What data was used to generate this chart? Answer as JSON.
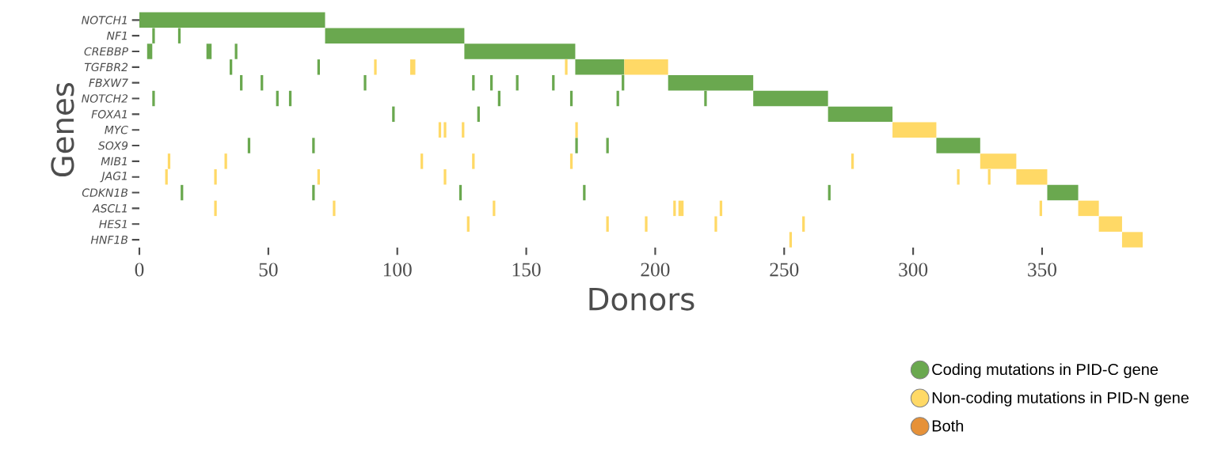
{
  "chart_data": {
    "type": "bar",
    "orientation": "horizontal",
    "xlabel": "Donors",
    "ylabel": "Genes",
    "categories": [
      "NOTCH1",
      "NF1",
      "CREBBP",
      "TGFBR2",
      "FBXW7",
      "NOTCH2",
      "FOXA1",
      "MYC",
      "SOX9",
      "MIB1",
      "JAG1",
      "CDKN1B",
      "ASCL1",
      "HES1",
      "HNF1B"
    ],
    "xlim": [
      0,
      389
    ],
    "xticks": [
      0,
      50,
      100,
      150,
      200,
      250,
      300,
      350
    ],
    "legend": "bottom right",
    "series": [
      {
        "name": "Coding mutations in PID-C gene",
        "color": "#6aa84f",
        "base": [
          0,
          5,
          3,
          35,
          39,
          5,
          98,
          null,
          42,
          null,
          null,
          16,
          null,
          null,
          null
        ],
        "values": [
          72,
          1,
          2,
          1,
          1,
          1,
          1,
          null,
          1,
          null,
          null,
          1,
          null,
          null,
          null
        ]
      },
      {
        "color": "#6aa84f",
        "base": [
          null,
          15,
          26,
          69,
          47,
          53,
          131,
          null,
          67,
          null,
          null,
          67,
          null,
          null,
          null
        ],
        "values": [
          null,
          1,
          2,
          1,
          1,
          1,
          1,
          null,
          1,
          null,
          null,
          1,
          null,
          null,
          null
        ]
      },
      {
        "color": "#6aa84f",
        "base": [
          null,
          72,
          37,
          169,
          87,
          58,
          267,
          null,
          169,
          null,
          null,
          124,
          null,
          null,
          null
        ],
        "values": [
          null,
          54,
          1,
          19,
          1,
          1,
          25,
          null,
          1,
          null,
          null,
          1,
          null,
          null,
          null
        ]
      },
      {
        "color": "#6aa84f",
        "base": [
          null,
          null,
          126,
          null,
          129,
          139,
          null,
          null,
          181,
          null,
          null,
          172,
          null,
          null,
          null
        ],
        "values": [
          null,
          null,
          43,
          null,
          1,
          1,
          null,
          null,
          1,
          null,
          null,
          1,
          null,
          null,
          null
        ]
      },
      {
        "color": "#6aa84f",
        "base": [
          null,
          null,
          null,
          null,
          136,
          167,
          null,
          null,
          309,
          null,
          null,
          267,
          null,
          null,
          null
        ],
        "values": [
          null,
          null,
          null,
          null,
          1,
          1,
          null,
          null,
          17,
          null,
          null,
          1,
          null,
          null,
          null
        ]
      },
      {
        "color": "#6aa84f",
        "base": [
          null,
          null,
          null,
          null,
          146,
          185,
          null,
          null,
          null,
          null,
          null,
          352,
          null,
          null,
          null
        ],
        "values": [
          null,
          null,
          null,
          null,
          1,
          1,
          null,
          null,
          null,
          null,
          null,
          12,
          null,
          null,
          null
        ]
      },
      {
        "color": "#6aa84f",
        "base": [
          null,
          null,
          null,
          null,
          160,
          219,
          null,
          null,
          null,
          null,
          null,
          null,
          null,
          null,
          null
        ],
        "values": [
          null,
          null,
          null,
          null,
          1,
          1,
          null,
          null,
          null,
          null,
          null,
          null,
          null,
          null,
          null
        ]
      },
      {
        "color": "#6aa84f",
        "base": [
          null,
          null,
          null,
          null,
          187,
          238,
          null,
          null,
          null,
          null,
          null,
          null,
          null,
          null,
          null
        ],
        "values": [
          null,
          null,
          null,
          null,
          1,
          29,
          null,
          null,
          null,
          null,
          null,
          null,
          null,
          null,
          null
        ]
      },
      {
        "color": "#6aa84f",
        "base": [
          null,
          null,
          null,
          null,
          205,
          null,
          null,
          null,
          null,
          null,
          null,
          null,
          null,
          null,
          null
        ],
        "values": [
          null,
          null,
          null,
          null,
          33,
          null,
          null,
          null,
          null,
          null,
          null,
          null,
          null,
          null,
          null
        ]
      },
      {
        "name": "Non-coding mutations in PID-N gene",
        "color": "#ffd966",
        "base": [
          null,
          null,
          null,
          91,
          null,
          null,
          null,
          116,
          null,
          11,
          10,
          null,
          29,
          127,
          252
        ],
        "values": [
          null,
          null,
          null,
          1,
          null,
          null,
          null,
          1,
          null,
          1,
          1,
          null,
          1,
          1,
          1
        ]
      },
      {
        "color": "#ffd966",
        "base": [
          null,
          null,
          null,
          105,
          null,
          null,
          null,
          118,
          null,
          33,
          29,
          null,
          75,
          181,
          381
        ],
        "values": [
          null,
          null,
          null,
          2,
          null,
          null,
          null,
          1,
          null,
          1,
          1,
          null,
          1,
          1,
          8
        ]
      },
      {
        "color": "#ffd966",
        "base": [
          null,
          null,
          null,
          165,
          null,
          null,
          null,
          125,
          null,
          109,
          69,
          null,
          137,
          196,
          null
        ],
        "values": [
          null,
          null,
          null,
          1,
          null,
          null,
          null,
          1,
          null,
          1,
          1,
          null,
          1,
          1,
          null
        ]
      },
      {
        "color": "#ffd966",
        "base": [
          null,
          null,
          null,
          188,
          null,
          null,
          null,
          169,
          null,
          129,
          118,
          null,
          207,
          223,
          null
        ],
        "values": [
          null,
          null,
          null,
          17,
          null,
          null,
          null,
          1,
          null,
          1,
          1,
          null,
          1,
          1,
          null
        ]
      },
      {
        "color": "#ffd966",
        "base": [
          null,
          null,
          null,
          null,
          null,
          null,
          null,
          292,
          null,
          167,
          317,
          null,
          209,
          257,
          null
        ],
        "values": [
          null,
          null,
          null,
          null,
          null,
          null,
          null,
          17,
          null,
          1,
          1,
          null,
          2,
          1,
          null
        ]
      },
      {
        "color": "#ffd966",
        "base": [
          null,
          null,
          null,
          null,
          null,
          null,
          null,
          null,
          null,
          276,
          329,
          null,
          225,
          372,
          null
        ],
        "values": [
          null,
          null,
          null,
          null,
          null,
          null,
          null,
          null,
          null,
          1,
          1,
          null,
          1,
          9,
          null
        ]
      },
      {
        "color": "#ffd966",
        "base": [
          null,
          null,
          null,
          null,
          null,
          null,
          null,
          null,
          null,
          326,
          340,
          null,
          349,
          null,
          null
        ],
        "values": [
          null,
          null,
          null,
          null,
          null,
          null,
          null,
          null,
          null,
          14,
          12,
          null,
          1,
          null,
          null
        ]
      },
      {
        "color": "#ffd966",
        "base": [
          null,
          null,
          null,
          null,
          null,
          null,
          null,
          null,
          null,
          null,
          null,
          null,
          364,
          null,
          null
        ],
        "values": [
          null,
          null,
          null,
          null,
          null,
          null,
          null,
          null,
          null,
          null,
          null,
          null,
          8,
          null,
          null
        ]
      },
      {
        "name": "Both",
        "color": "#e69138",
        "values": [
          null,
          null,
          null,
          null,
          null,
          null,
          null,
          null,
          null,
          null,
          null,
          null,
          null,
          null,
          null
        ]
      }
    ]
  }
}
